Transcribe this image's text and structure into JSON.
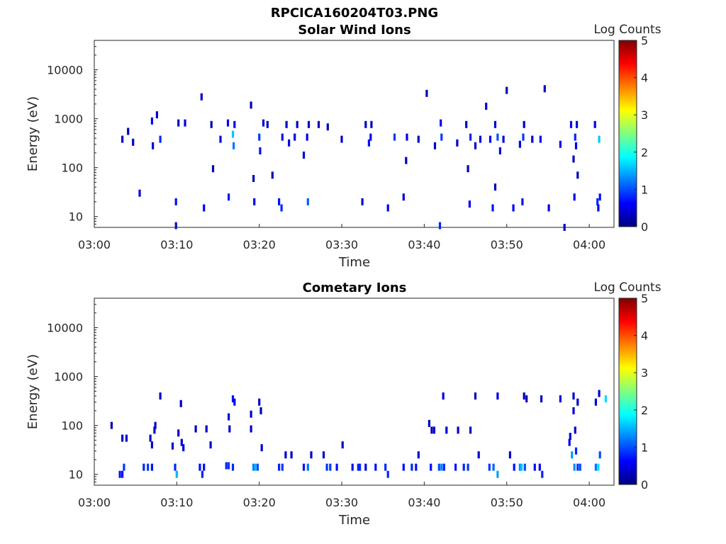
{
  "figure": {
    "title": "RPCICA160204T03.PNG"
  },
  "colorbar": {
    "ticks": [
      "0",
      "1",
      "2",
      "3",
      "4",
      "5"
    ],
    "range": [
      0,
      5
    ],
    "stops": [
      "#00007f",
      "#0000ff",
      "#007fff",
      "#00ffff",
      "#7fff7f",
      "#ffff00",
      "#ff7f00",
      "#ff0000",
      "#7f0000"
    ]
  },
  "chart_data": [
    {
      "type": "heatmap",
      "title": "Solar Wind Ions",
      "xlabel": "Time",
      "ylabel": "Energy (eV)",
      "colorbar_label": "Log Counts",
      "x_ticks": [
        "03:00",
        "03:10",
        "03:20",
        "03:30",
        "03:40",
        "03:50",
        "04:00"
      ],
      "y_ticks": [
        "10",
        "100",
        "1000",
        "10000"
      ],
      "y_scale": "log",
      "y_range": [
        6,
        40000
      ],
      "x_range_minutes": [
        0,
        63
      ],
      "cells": [
        [
          3.4,
          380,
          0.4
        ],
        [
          4.1,
          550,
          0.3
        ],
        [
          4.7,
          330,
          0.4
        ],
        [
          5.5,
          30,
          0.5
        ],
        [
          7.0,
          900,
          0.6
        ],
        [
          7.1,
          280,
          0.5
        ],
        [
          7.6,
          1200,
          0.4
        ],
        [
          8.0,
          380,
          0.8
        ],
        [
          9.9,
          6.5,
          0.7
        ],
        [
          9.9,
          20,
          0.7
        ],
        [
          10.2,
          820,
          0.4
        ],
        [
          11.0,
          820,
          0.5
        ],
        [
          13.0,
          2800,
          0.4
        ],
        [
          13.3,
          15,
          0.6
        ],
        [
          14.2,
          760,
          0.3
        ],
        [
          14.4,
          95,
          0.3
        ],
        [
          15.3,
          380,
          0.5
        ],
        [
          16.2,
          820,
          0.6
        ],
        [
          16.3,
          25,
          0.7
        ],
        [
          16.8,
          480,
          1.6
        ],
        [
          16.9,
          280,
          1.2
        ],
        [
          17.0,
          760,
          0.6
        ],
        [
          19.0,
          1900,
          0.3
        ],
        [
          19.3,
          60,
          0.3
        ],
        [
          19.4,
          20,
          0.6
        ],
        [
          20.0,
          420,
          0.9
        ],
        [
          20.1,
          220,
          0.7
        ],
        [
          20.5,
          820,
          0.4
        ],
        [
          21.0,
          760,
          0.4
        ],
        [
          21.6,
          70,
          0.3
        ],
        [
          22.4,
          20,
          0.7
        ],
        [
          22.7,
          15,
          0.8
        ],
        [
          22.8,
          420,
          0.7
        ],
        [
          23.3,
          760,
          0.4
        ],
        [
          23.6,
          320,
          0.6
        ],
        [
          24.3,
          420,
          0.5
        ],
        [
          24.6,
          760,
          0.4
        ],
        [
          25.4,
          180,
          0.4
        ],
        [
          25.8,
          420,
          0.6
        ],
        [
          25.9,
          20,
          1.1
        ],
        [
          26.0,
          760,
          0.3
        ],
        [
          27.2,
          760,
          0.3
        ],
        [
          28.3,
          680,
          0.3
        ],
        [
          30.0,
          380,
          0.4
        ],
        [
          32.5,
          20,
          0.5
        ],
        [
          32.9,
          760,
          0.4
        ],
        [
          33.3,
          320,
          0.7
        ],
        [
          33.5,
          420,
          0.6
        ],
        [
          33.6,
          760,
          0.3
        ],
        [
          35.6,
          15,
          0.6
        ],
        [
          36.4,
          420,
          0.9
        ],
        [
          37.5,
          25,
          0.4
        ],
        [
          37.8,
          140,
          0.3
        ],
        [
          37.9,
          420,
          0.6
        ],
        [
          39.3,
          380,
          0.3
        ],
        [
          40.3,
          3300,
          0.3
        ],
        [
          41.3,
          280,
          0.4
        ],
        [
          41.9,
          6.5,
          0.8
        ],
        [
          42.0,
          820,
          0.6
        ],
        [
          42.1,
          420,
          0.9
        ],
        [
          44.0,
          320,
          0.4
        ],
        [
          45.1,
          760,
          0.3
        ],
        [
          45.3,
          95,
          0.3
        ],
        [
          45.5,
          18,
          0.6
        ],
        [
          45.6,
          420,
          0.8
        ],
        [
          46.2,
          280,
          0.4
        ],
        [
          46.8,
          380,
          0.5
        ],
        [
          47.5,
          1800,
          0.4
        ],
        [
          48.0,
          380,
          0.6
        ],
        [
          48.3,
          15,
          0.7
        ],
        [
          48.6,
          40,
          0.3
        ],
        [
          48.6,
          760,
          0.4
        ],
        [
          48.9,
          420,
          1.0
        ],
        [
          49.2,
          220,
          0.5
        ],
        [
          49.6,
          380,
          0.5
        ],
        [
          50.0,
          3800,
          0.3
        ],
        [
          50.8,
          15,
          0.6
        ],
        [
          51.6,
          300,
          0.6
        ],
        [
          51.9,
          20,
          0.7
        ],
        [
          52.0,
          420,
          0.9
        ],
        [
          52.1,
          760,
          0.4
        ],
        [
          53.1,
          380,
          0.4
        ],
        [
          54.1,
          380,
          0.6
        ],
        [
          54.6,
          4100,
          0.3
        ],
        [
          55.1,
          15,
          0.5
        ],
        [
          56.5,
          300,
          0.6
        ],
        [
          57.0,
          6.0,
          0.3
        ],
        [
          57.8,
          760,
          0.6
        ],
        [
          58.2,
          25,
          0.6
        ],
        [
          58.3,
          420,
          0.8
        ],
        [
          58.4,
          280,
          0.6
        ],
        [
          58.5,
          760,
          0.4
        ],
        [
          58.1,
          150,
          0.3
        ],
        [
          58.6,
          70,
          0.3
        ],
        [
          60.7,
          760,
          0.5
        ],
        [
          61.0,
          20,
          0.8
        ],
        [
          61.2,
          380,
          1.6
        ],
        [
          61.1,
          15,
          0.6
        ],
        [
          61.3,
          25,
          0.7
        ]
      ]
    },
    {
      "type": "heatmap",
      "title": "Cometary Ions",
      "xlabel": "Time",
      "ylabel": "Energy (eV)",
      "colorbar_label": "Log Counts",
      "x_ticks": [
        "03:00",
        "03:10",
        "03:20",
        "03:30",
        "03:40",
        "03:50",
        "04:00"
      ],
      "y_ticks": [
        "10",
        "100",
        "1000",
        "10000"
      ],
      "y_scale": "log",
      "y_range": [
        6,
        40000
      ],
      "x_range_minutes": [
        0,
        63
      ],
      "cells": [
        [
          2.1,
          100,
          0.3
        ],
        [
          3.1,
          10,
          0.7
        ],
        [
          3.4,
          10,
          0.7
        ],
        [
          3.6,
          14,
          0.9
        ],
        [
          3.4,
          55,
          0.4
        ],
        [
          3.9,
          55,
          0.4
        ],
        [
          6.0,
          14,
          0.8
        ],
        [
          6.5,
          14,
          0.9
        ],
        [
          6.8,
          55,
          0.4
        ],
        [
          7.0,
          40,
          0.4
        ],
        [
          7.3,
          80,
          0.4
        ],
        [
          7.4,
          100,
          0.4
        ],
        [
          7.0,
          14,
          0.7
        ],
        [
          8.0,
          400,
          0.4
        ],
        [
          9.5,
          38,
          0.4
        ],
        [
          9.8,
          14,
          0.8
        ],
        [
          10.0,
          10,
          1.5
        ],
        [
          10.2,
          70,
          0.4
        ],
        [
          10.5,
          280,
          0.3
        ],
        [
          10.6,
          45,
          0.4
        ],
        [
          10.8,
          35,
          0.4
        ],
        [
          12.3,
          85,
          0.3
        ],
        [
          12.8,
          14,
          0.7
        ],
        [
          13.1,
          10,
          0.8
        ],
        [
          13.3,
          14,
          0.7
        ],
        [
          13.6,
          85,
          0.3
        ],
        [
          14.1,
          40,
          0.4
        ],
        [
          16.0,
          15,
          0.8
        ],
        [
          16.3,
          15,
          0.9
        ],
        [
          16.8,
          14,
          0.8
        ],
        [
          16.3,
          150,
          0.4
        ],
        [
          16.4,
          85,
          0.4
        ],
        [
          16.8,
          350,
          0.7
        ],
        [
          17.0,
          300,
          0.6
        ],
        [
          19.0,
          85,
          0.4
        ],
        [
          19.3,
          14,
          1.2
        ],
        [
          19.5,
          14,
          1.5
        ],
        [
          19.0,
          170,
          0.4
        ],
        [
          19.8,
          14,
          1.0
        ],
        [
          20.0,
          300,
          0.4
        ],
        [
          20.2,
          200,
          0.3
        ],
        [
          20.3,
          35,
          0.4
        ],
        [
          22.4,
          14,
          0.8
        ],
        [
          22.8,
          14,
          0.9
        ],
        [
          23.2,
          25,
          0.4
        ],
        [
          23.9,
          25,
          0.3
        ],
        [
          25.4,
          14,
          0.7
        ],
        [
          25.9,
          14,
          1.2
        ],
        [
          26.3,
          25,
          0.4
        ],
        [
          27.8,
          25,
          0.4
        ],
        [
          28.2,
          14,
          0.9
        ],
        [
          28.6,
          14,
          0.9
        ],
        [
          29.4,
          14,
          0.7
        ],
        [
          30.1,
          40,
          0.4
        ],
        [
          31.3,
          14,
          0.7
        ],
        [
          32.0,
          14,
          0.8
        ],
        [
          32.2,
          14,
          0.8
        ],
        [
          32.9,
          14,
          0.5
        ],
        [
          34.1,
          14,
          0.7
        ],
        [
          35.3,
          14,
          0.8
        ],
        [
          35.6,
          10,
          0.8
        ],
        [
          37.5,
          14,
          0.7
        ],
        [
          38.5,
          14,
          0.8
        ],
        [
          39.0,
          14,
          0.7
        ],
        [
          39.3,
          25,
          0.4
        ],
        [
          40.6,
          110,
          0.3
        ],
        [
          40.9,
          80,
          0.3
        ],
        [
          40.8,
          14,
          0.7
        ],
        [
          41.2,
          80,
          0.4
        ],
        [
          41.8,
          14,
          1.0
        ],
        [
          42.1,
          14,
          1.3
        ],
        [
          42.3,
          400,
          0.5
        ],
        [
          42.4,
          14,
          0.8
        ],
        [
          42.7,
          80,
          0.4
        ],
        [
          43.8,
          14,
          0.7
        ],
        [
          44.1,
          80,
          0.4
        ],
        [
          44.8,
          14,
          0.8
        ],
        [
          45.3,
          14,
          0.9
        ],
        [
          45.6,
          80,
          0.4
        ],
        [
          46.2,
          400,
          0.3
        ],
        [
          46.6,
          25,
          0.4
        ],
        [
          47.9,
          14,
          0.9
        ],
        [
          48.4,
          14,
          1.1
        ],
        [
          48.9,
          10,
          1.4
        ],
        [
          48.9,
          400,
          0.5
        ],
        [
          50.4,
          25,
          0.4
        ],
        [
          50.9,
          14,
          0.7
        ],
        [
          51.6,
          14,
          1.3
        ],
        [
          51.8,
          14,
          1.6
        ],
        [
          52.2,
          14,
          1.0
        ],
        [
          52.1,
          400,
          0.3
        ],
        [
          52.4,
          350,
          0.3
        ],
        [
          53.4,
          14,
          0.7
        ],
        [
          54.0,
          14,
          0.6
        ],
        [
          54.2,
          350,
          0.4
        ],
        [
          54.3,
          10,
          0.8
        ],
        [
          56.5,
          350,
          0.5
        ],
        [
          57.6,
          45,
          0.5
        ],
        [
          57.9,
          25,
          1.4
        ],
        [
          58.2,
          14,
          1.3
        ],
        [
          58.4,
          30,
          0.8
        ],
        [
          58.6,
          14,
          0.9
        ],
        [
          58.9,
          14,
          1.0
        ],
        [
          57.7,
          60,
          0.4
        ],
        [
          58.3,
          80,
          0.4
        ],
        [
          58.1,
          400,
          0.4
        ],
        [
          58.6,
          300,
          0.4
        ],
        [
          58.1,
          200,
          0.4
        ],
        [
          60.8,
          14,
          1.2
        ],
        [
          61.1,
          14,
          1.7
        ],
        [
          61.3,
          25,
          1.0
        ],
        [
          60.8,
          300,
          0.5
        ],
        [
          61.2,
          450,
          0.4
        ],
        [
          62.0,
          350,
          1.7
        ]
      ]
    }
  ]
}
